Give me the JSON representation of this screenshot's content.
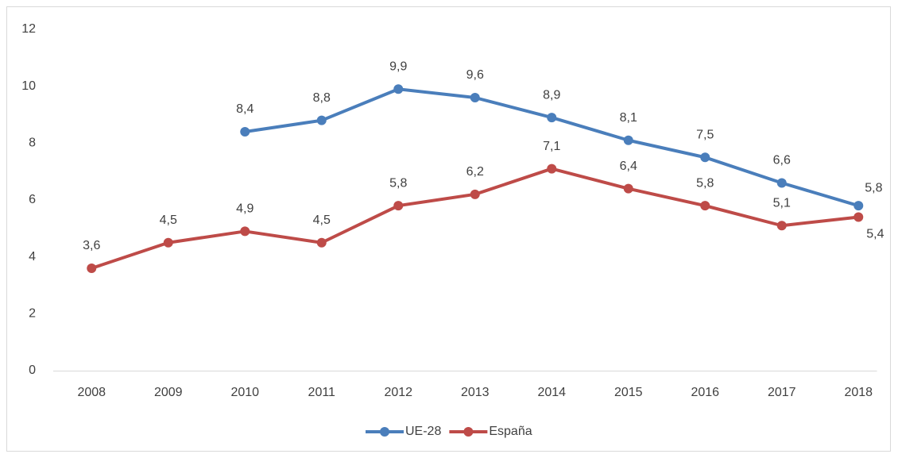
{
  "chart_data": {
    "type": "line",
    "categories": [
      "2008",
      "2009",
      "2010",
      "2011",
      "2012",
      "2013",
      "2014",
      "2015",
      "2016",
      "2017",
      "2018"
    ],
    "series": [
      {
        "name": "UE-28",
        "color": "#4a7ebb",
        "values": [
          null,
          null,
          8.4,
          8.8,
          9.9,
          9.6,
          8.9,
          8.1,
          7.5,
          6.6,
          5.8
        ],
        "value_labels": [
          null,
          null,
          "8,4",
          "8,8",
          "9,9",
          "9,6",
          "8,9",
          "8,1",
          "7,5",
          "6,6",
          "5,8"
        ]
      },
      {
        "name": "España",
        "color": "#be4b48",
        "values": [
          3.6,
          4.5,
          4.9,
          4.5,
          5.8,
          6.2,
          7.1,
          6.4,
          5.8,
          5.1,
          5.4
        ],
        "value_labels": [
          "3,6",
          "4,5",
          "4,9",
          "4,5",
          "5,8",
          "6,2",
          "7,1",
          "6,4",
          "5,8",
          "5,1",
          "5,4"
        ]
      }
    ],
    "ylim": [
      0,
      12
    ],
    "yticks": [
      0,
      2,
      4,
      6,
      8,
      10,
      12
    ],
    "grid": false,
    "legend": "bottom"
  }
}
